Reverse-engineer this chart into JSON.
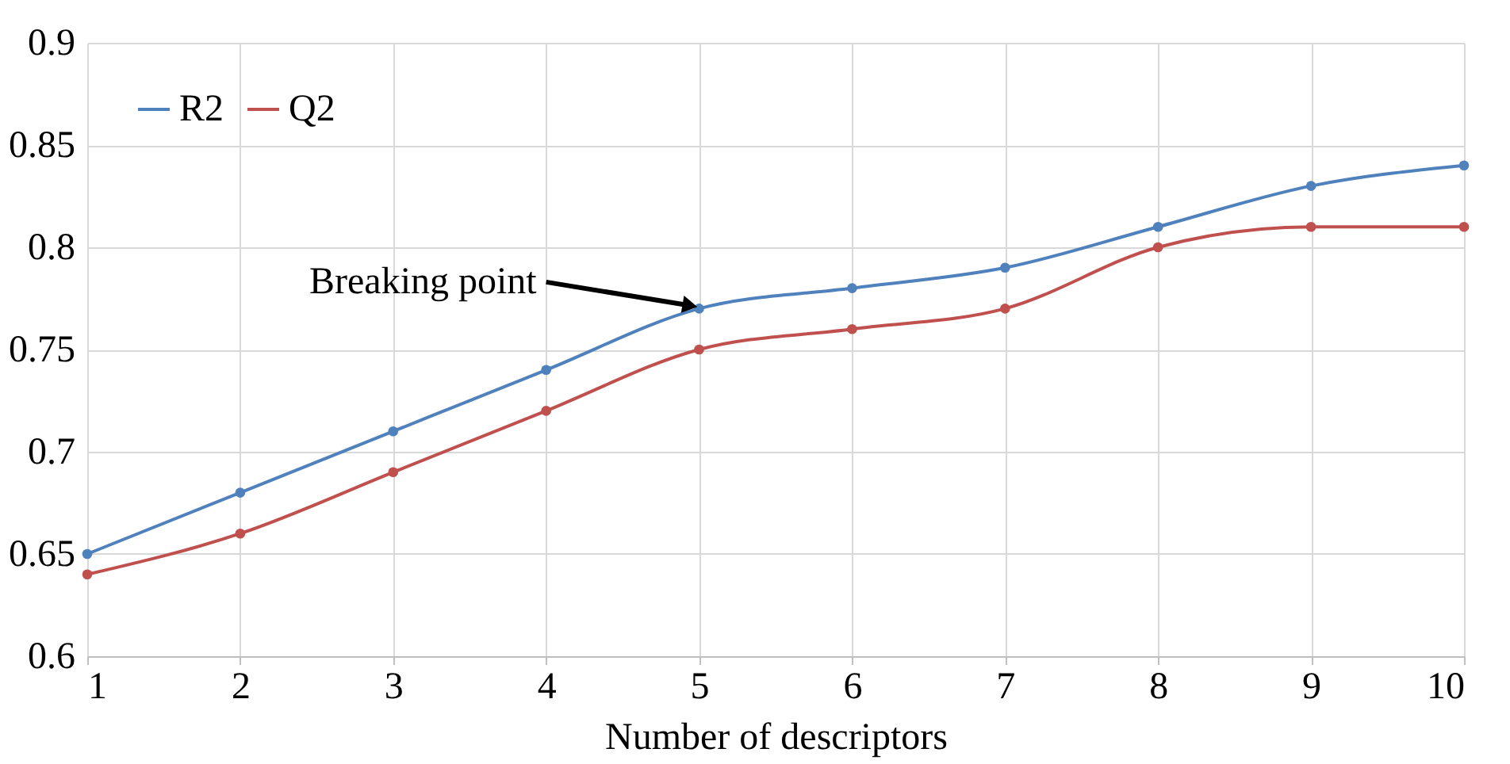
{
  "chart_data": {
    "type": "line",
    "xlabel": "Number of descriptors",
    "x": [
      1,
      2,
      3,
      4,
      5,
      6,
      7,
      8,
      9,
      10
    ],
    "series": [
      {
        "name": "R2",
        "color": "#4f81bd",
        "values": [
          0.65,
          0.68,
          0.71,
          0.74,
          0.77,
          0.78,
          0.79,
          0.81,
          0.83,
          0.84
        ]
      },
      {
        "name": "Q2",
        "color": "#c0504d",
        "values": [
          0.64,
          0.66,
          0.69,
          0.72,
          0.75,
          0.76,
          0.77,
          0.8,
          0.81,
          0.81
        ]
      }
    ],
    "xlim": [
      1,
      10
    ],
    "xticks": [
      1,
      2,
      3,
      4,
      5,
      6,
      7,
      8,
      9,
      10
    ],
    "ylim": [
      0.6,
      0.9
    ],
    "yticks": [
      0.6,
      0.65,
      0.7,
      0.75,
      0.8,
      0.85,
      0.9
    ],
    "annotations": [
      {
        "text": "Breaking point",
        "x": 5,
        "y": 0.77
      }
    ],
    "grid": true,
    "legend": "top left",
    "marker": "circle",
    "line_style": "solid"
  }
}
